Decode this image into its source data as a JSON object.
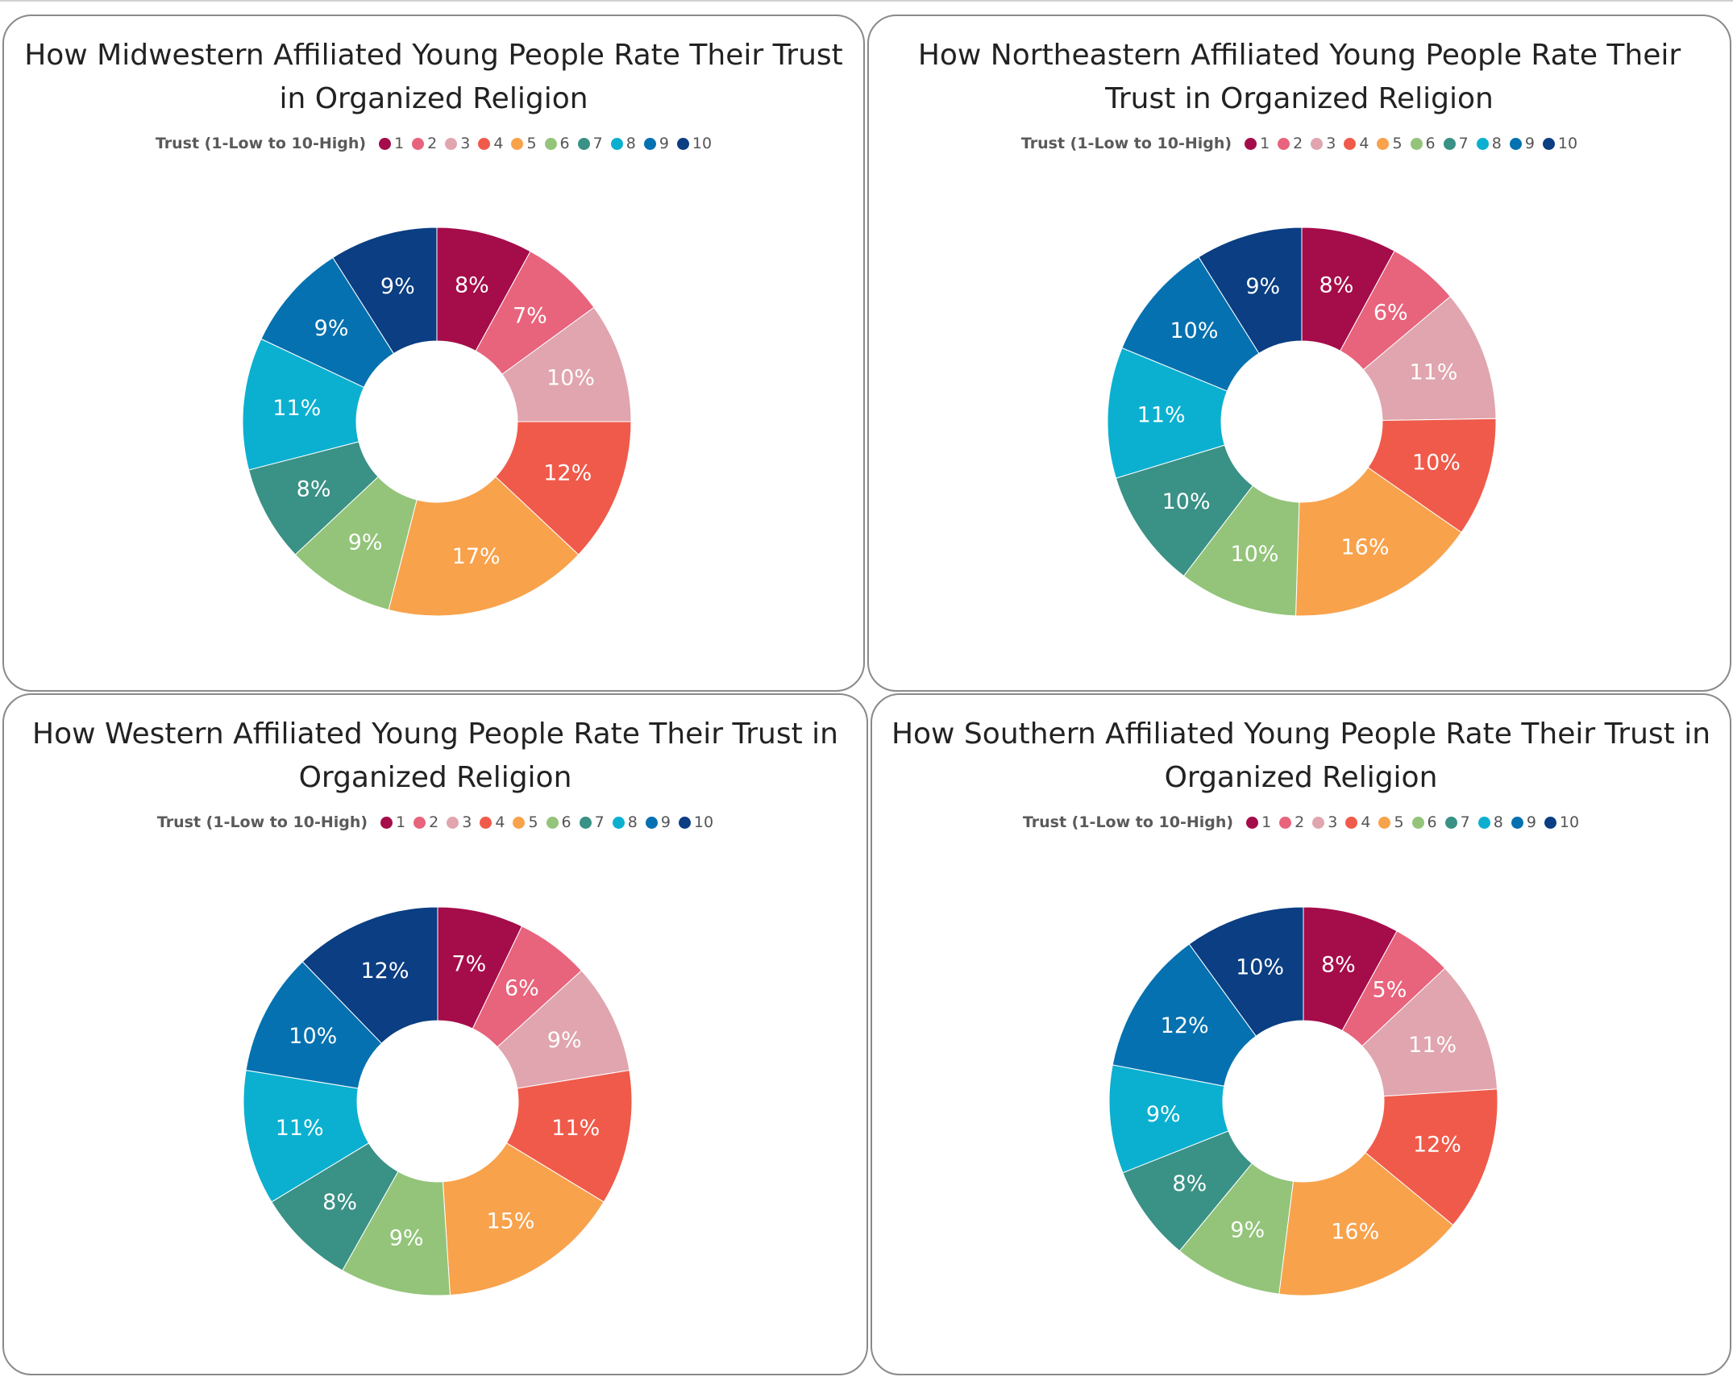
{
  "chart_data": [
    {
      "type": "donut",
      "title": "How Midwestern Affiliated Young People Rate Their Trust in Organized Religion",
      "legend_title": "Trust (1-Low to 10-High)",
      "categories": [
        "1",
        "2",
        "3",
        "4",
        "5",
        "6",
        "7",
        "8",
        "9",
        "10"
      ],
      "values": [
        8,
        7,
        10,
        12,
        17,
        9,
        8,
        11,
        9,
        9
      ],
      "labels": [
        "8%",
        "7%",
        "10%",
        "12%",
        "17%",
        "9%",
        "8%",
        "11%",
        "9%",
        "9%"
      ],
      "colors": [
        "#a50c4a",
        "#e8637c",
        "#e0a5ae",
        "#f05a4a",
        "#f8a24c",
        "#93c47a",
        "#3a9185",
        "#0bb0d0",
        "#0571b0",
        "#0b3e82"
      ]
    },
    {
      "type": "donut",
      "title": "How Northeastern Affiliated Young People Rate Their Trust in Organized Religion",
      "legend_title": "Trust (1-Low to 10-High)",
      "categories": [
        "1",
        "2",
        "3",
        "4",
        "5",
        "6",
        "7",
        "8",
        "9",
        "10"
      ],
      "values": [
        8,
        6,
        11,
        10,
        16,
        10,
        10,
        11,
        10,
        9
      ],
      "labels": [
        "8%",
        "6%",
        "11%",
        "10%",
        "16%",
        "10%",
        "10%",
        "11%",
        "10%",
        "9%"
      ],
      "colors": [
        "#a50c4a",
        "#e8637c",
        "#e0a5ae",
        "#f05a4a",
        "#f8a24c",
        "#93c47a",
        "#3a9185",
        "#0bb0d0",
        "#0571b0",
        "#0b3e82"
      ]
    },
    {
      "type": "donut",
      "title": "How Western Affiliated Young People Rate Their Trust in Organized Religion",
      "legend_title": "Trust (1-Low to 10-High)",
      "categories": [
        "1",
        "2",
        "3",
        "4",
        "5",
        "6",
        "7",
        "8",
        "9",
        "10"
      ],
      "values": [
        7,
        6,
        9,
        11,
        15,
        9,
        8,
        11,
        10,
        12
      ],
      "labels": [
        "7%",
        "6%",
        "9%",
        "11%",
        "15%",
        "9%",
        "8%",
        "11%",
        "10%",
        "12%"
      ],
      "colors": [
        "#a50c4a",
        "#e8637c",
        "#e0a5ae",
        "#f05a4a",
        "#f8a24c",
        "#93c47a",
        "#3a9185",
        "#0bb0d0",
        "#0571b0",
        "#0b3e82"
      ]
    },
    {
      "type": "donut",
      "title": "How Southern Affiliated Young People Rate Their Trust in Organized Religion",
      "legend_title": "Trust (1-Low to 10-High)",
      "categories": [
        "1",
        "2",
        "3",
        "4",
        "5",
        "6",
        "7",
        "8",
        "9",
        "10"
      ],
      "values": [
        8,
        5,
        11,
        12,
        16,
        9,
        8,
        9,
        12,
        10
      ],
      "labels": [
        "8%",
        "5%",
        "11%",
        "12%",
        "16%",
        "9%",
        "8%",
        "9%",
        "12%",
        "10%"
      ],
      "colors": [
        "#a50c4a",
        "#e8637c",
        "#e0a5ae",
        "#f05a4a",
        "#f8a24c",
        "#93c47a",
        "#3a9185",
        "#0bb0d0",
        "#0571b0",
        "#0b3e82"
      ]
    }
  ]
}
